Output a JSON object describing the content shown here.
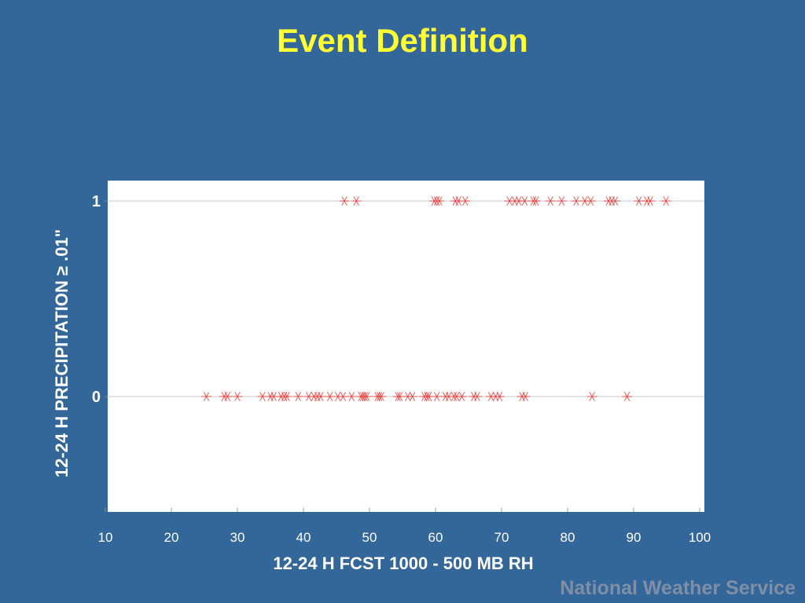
{
  "slide": {
    "title": "Event Definition",
    "footer": "National Weather Service"
  },
  "colors": {
    "background": "#336699",
    "title": "#FFFF33",
    "marker": "#E8312F",
    "plot_bg": "#FFFFFF",
    "gridline": "#C8C8C8",
    "footer": "#7F8FA6"
  },
  "chart_data": {
    "type": "scatter",
    "xlabel": "12-24 H FCST 1000 - 500 MB RH",
    "ylabel": "12-24 H PRECIPITATION ≥ .01\"",
    "xlim": [
      10,
      100
    ],
    "ylim": [
      -0.6,
      1.1
    ],
    "x_ticks": [
      "10",
      "20",
      "30",
      "40",
      "50",
      "60",
      "70",
      "80",
      "90",
      "100"
    ],
    "y_ticks": [
      "0",
      "1"
    ],
    "marker": "asterisk",
    "grid": "horizontal at y-ticks",
    "points": [
      [
        25.3,
        0
      ],
      [
        28.0,
        0
      ],
      [
        28.5,
        0
      ],
      [
        30.0,
        0
      ],
      [
        33.8,
        0
      ],
      [
        35.0,
        0
      ],
      [
        35.5,
        0
      ],
      [
        36.6,
        0
      ],
      [
        37.1,
        0
      ],
      [
        37.5,
        0
      ],
      [
        39.2,
        0
      ],
      [
        40.8,
        0
      ],
      [
        41.6,
        0
      ],
      [
        42.1,
        0
      ],
      [
        42.6,
        0
      ],
      [
        44.0,
        0
      ],
      [
        45.2,
        0
      ],
      [
        46.0,
        0
      ],
      [
        47.3,
        0
      ],
      [
        48.7,
        0
      ],
      [
        49.0,
        0
      ],
      [
        49.3,
        0
      ],
      [
        49.6,
        0
      ],
      [
        51.2,
        0
      ],
      [
        51.5,
        0
      ],
      [
        51.8,
        0
      ],
      [
        54.3,
        0
      ],
      [
        54.6,
        0
      ],
      [
        55.8,
        0
      ],
      [
        56.5,
        0
      ],
      [
        58.3,
        0
      ],
      [
        58.7,
        0
      ],
      [
        59.0,
        0
      ],
      [
        60.2,
        0
      ],
      [
        61.5,
        0
      ],
      [
        62.0,
        0
      ],
      [
        62.8,
        0
      ],
      [
        63.2,
        0
      ],
      [
        64.0,
        0
      ],
      [
        65.8,
        0
      ],
      [
        66.3,
        0
      ],
      [
        68.4,
        0
      ],
      [
        69.1,
        0
      ],
      [
        69.7,
        0
      ],
      [
        73.1,
        0
      ],
      [
        73.6,
        0
      ],
      [
        83.7,
        0
      ],
      [
        89.0,
        0
      ],
      [
        46.2,
        1
      ],
      [
        48.0,
        1
      ],
      [
        59.8,
        1
      ],
      [
        60.2,
        1
      ],
      [
        60.6,
        1
      ],
      [
        63.0,
        1
      ],
      [
        63.5,
        1
      ],
      [
        64.5,
        1
      ],
      [
        71.2,
        1
      ],
      [
        72.0,
        1
      ],
      [
        72.6,
        1
      ],
      [
        73.5,
        1
      ],
      [
        74.8,
        1
      ],
      [
        75.2,
        1
      ],
      [
        77.4,
        1
      ],
      [
        79.1,
        1
      ],
      [
        81.3,
        1
      ],
      [
        82.6,
        1
      ],
      [
        83.5,
        1
      ],
      [
        86.2,
        1
      ],
      [
        86.7,
        1
      ],
      [
        87.2,
        1
      ],
      [
        90.8,
        1
      ],
      [
        92.0,
        1
      ],
      [
        92.5,
        1
      ],
      [
        94.9,
        1
      ]
    ]
  }
}
